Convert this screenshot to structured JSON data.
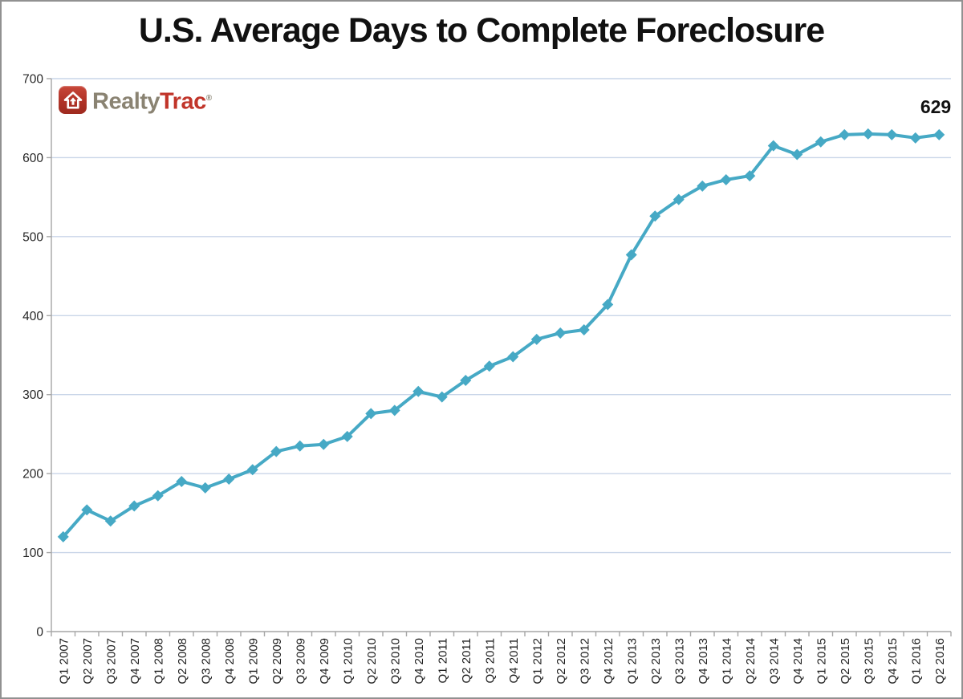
{
  "title": "U.S. Average Days to Complete Foreclosure",
  "logo": {
    "realty": "Realty",
    "trac": "Trac",
    "reg": "®",
    "badge_color": "#b03226",
    "realty_color": "#8a8372",
    "trac_color": "#c1352a"
  },
  "chart_data": {
    "type": "line",
    "title": "U.S. Average Days to Complete Foreclosure",
    "xlabel": "",
    "ylabel": "",
    "ylim": [
      0,
      700
    ],
    "y_ticks": [
      0,
      100,
      200,
      300,
      400,
      500,
      600,
      700
    ],
    "grid": "horizontal",
    "legend": "none",
    "marker": "diamond",
    "categories": [
      "Q1 2007",
      "Q2 2007",
      "Q3 2007",
      "Q4 2007",
      "Q1 2008",
      "Q2 2008",
      "Q3 2008",
      "Q4 2008",
      "Q1 2009",
      "Q2 2009",
      "Q3 2009",
      "Q4 2009",
      "Q1 2010",
      "Q2 2010",
      "Q3 2010",
      "Q4 2010",
      "Q1 2011",
      "Q2 2011",
      "Q3 2011",
      "Q4 2011",
      "Q1 2012",
      "Q2 2012",
      "Q3 2012",
      "Q4 2012",
      "Q1 2013",
      "Q2 2013",
      "Q3 2013",
      "Q4 2013",
      "Q1 2014",
      "Q2 2014",
      "Q3 2014",
      "Q4 2014",
      "Q1 2015",
      "Q2 2015",
      "Q3 2015",
      "Q4 2015",
      "Q1 2016",
      "Q2 2016"
    ],
    "values": [
      120,
      154,
      140,
      159,
      172,
      190,
      182,
      193,
      205,
      228,
      235,
      237,
      247,
      276,
      280,
      304,
      297,
      318,
      336,
      348,
      370,
      378,
      382,
      414,
      477,
      526,
      547,
      564,
      572,
      577,
      615,
      604,
      620,
      629,
      630,
      629,
      625,
      629
    ],
    "annotation": {
      "text": "629",
      "attached_to": "Q2 2016"
    },
    "colors": {
      "line": "#46A9C5",
      "marker": "#46A9C5",
      "gridline": "#C9D5E8",
      "axis": "#A6A6A6",
      "tick_text": "#262626",
      "annotation_text": "#111111"
    }
  }
}
